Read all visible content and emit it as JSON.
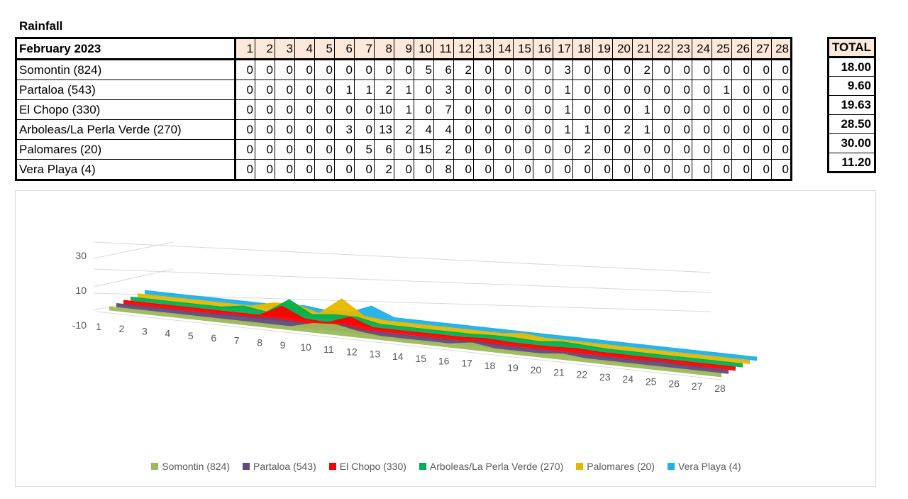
{
  "title": "Rainfall",
  "table": {
    "header_label": "February 2023",
    "days": [
      "1",
      "2",
      "3",
      "4",
      "5",
      "6",
      "7",
      "8",
      "9",
      "10",
      "11",
      "12",
      "13",
      "14",
      "15",
      "16",
      "17",
      "18",
      "19",
      "20",
      "21",
      "22",
      "23",
      "24",
      "25",
      "26",
      "27",
      "28"
    ],
    "total_label": "TOTAL",
    "rows": [
      {
        "site": "Somontin (824)",
        "values": [
          "0",
          "0",
          "0",
          "0",
          "0",
          "0",
          "0",
          "0",
          "0",
          "5",
          "6",
          "2",
          "0",
          "0",
          "0",
          "0",
          "3",
          "0",
          "0",
          "0",
          "2",
          "0",
          "0",
          "0",
          "0",
          "0",
          "0",
          "0"
        ],
        "total": "18.00"
      },
      {
        "site": "Partaloa (543)",
        "values": [
          "0",
          "0",
          "0",
          "0",
          "0",
          "1",
          "1",
          "2",
          "1",
          "0",
          "3",
          "0",
          "0",
          "0",
          "0",
          "0",
          "1",
          "0",
          "0",
          "0",
          "0",
          "0",
          "0",
          "0",
          "1",
          "0",
          "0",
          "0"
        ],
        "total": "9.60"
      },
      {
        "site": "El Chopo (330)",
        "values": [
          "0",
          "0",
          "0",
          "0",
          "0",
          "0",
          "0",
          "10",
          "1",
          "0",
          "7",
          "0",
          "0",
          "0",
          "0",
          "0",
          "1",
          "0",
          "0",
          "0",
          "1",
          "0",
          "0",
          "0",
          "0",
          "0",
          "0",
          "0"
        ],
        "total": "19.63"
      },
      {
        "site": "Arboleas/La Perla Verde (270)",
        "values": [
          "0",
          "0",
          "0",
          "0",
          "0",
          "3",
          "0",
          "13",
          "2",
          "4",
          "4",
          "0",
          "0",
          "0",
          "0",
          "0",
          "1",
          "1",
          "0",
          "2",
          "1",
          "0",
          "0",
          "0",
          "0",
          "0",
          "0",
          "0"
        ],
        "total": "28.50"
      },
      {
        "site": "Palomares (20)",
        "values": [
          "0",
          "0",
          "0",
          "0",
          "0",
          "0",
          "5",
          "6",
          "0",
          "15",
          "2",
          "0",
          "0",
          "0",
          "0",
          "0",
          "0",
          "2",
          "0",
          "0",
          "0",
          "0",
          "0",
          "0",
          "0",
          "0",
          "0",
          "0"
        ],
        "total": "30.00"
      },
      {
        "site": "Vera Playa (4)",
        "values": [
          "0",
          "0",
          "0",
          "0",
          "0",
          "0",
          "0",
          "2",
          "0",
          "0",
          "8",
          "0",
          "0",
          "0",
          "0",
          "0",
          "0",
          "0",
          "0",
          "0",
          "0",
          "0",
          "0",
          "0",
          "0",
          "0",
          "0",
          "0"
        ],
        "total": "11.20"
      }
    ]
  },
  "chart_data": {
    "type": "area",
    "subtype": "3d-area",
    "categories": [
      1,
      2,
      3,
      4,
      5,
      6,
      7,
      8,
      9,
      10,
      11,
      12,
      13,
      14,
      15,
      16,
      17,
      18,
      19,
      20,
      21,
      22,
      23,
      24,
      25,
      26,
      27,
      28
    ],
    "series": [
      {
        "name": "Somontin (824)",
        "color": "#9bbb59",
        "values": [
          0,
          0,
          0,
          0,
          0,
          0,
          0,
          0,
          0,
          5,
          6,
          2,
          0,
          0,
          0,
          0,
          3,
          0,
          0,
          0,
          2,
          0,
          0,
          0,
          0,
          0,
          0,
          0
        ]
      },
      {
        "name": "Partaloa (543)",
        "color": "#604a7b",
        "values": [
          0,
          0,
          0,
          0,
          0,
          1,
          1,
          2,
          1,
          0,
          3,
          0,
          0,
          0,
          0,
          0,
          1,
          0,
          0,
          0,
          0,
          0,
          0,
          0,
          1,
          0,
          0,
          0
        ]
      },
      {
        "name": "El Chopo (330)",
        "color": "#ff0000",
        "values": [
          0,
          0,
          0,
          0,
          0,
          0,
          0,
          10,
          1,
          0,
          7,
          0,
          0,
          0,
          0,
          0,
          1,
          0,
          0,
          0,
          1,
          0,
          0,
          0,
          0,
          0,
          0,
          0
        ]
      },
      {
        "name": "Arboleas/La Perla Verde (270)",
        "color": "#00b050",
        "values": [
          0,
          0,
          0,
          0,
          0,
          3,
          0,
          13,
          2,
          4,
          4,
          0,
          0,
          0,
          0,
          0,
          1,
          1,
          0,
          2,
          1,
          0,
          0,
          0,
          0,
          0,
          0,
          0
        ]
      },
      {
        "name": "Palomares (20)",
        "color": "#e5b800",
        "values": [
          0,
          0,
          0,
          0,
          0,
          0,
          5,
          6,
          0,
          15,
          2,
          0,
          0,
          0,
          0,
          0,
          0,
          2,
          0,
          0,
          0,
          0,
          0,
          0,
          0,
          0,
          0,
          0
        ]
      },
      {
        "name": "Vera Playa (4)",
        "color": "#1fb1e8",
        "values": [
          0,
          0,
          0,
          0,
          0,
          0,
          0,
          2,
          0,
          0,
          8,
          0,
          0,
          0,
          0,
          0,
          0,
          0,
          0,
          0,
          0,
          0,
          0,
          0,
          0,
          0,
          0,
          0
        ]
      }
    ],
    "y_ticks": [
      "30",
      "10",
      "-10"
    ],
    "ylim": [
      -10,
      30
    ],
    "legend_position": "bottom"
  }
}
